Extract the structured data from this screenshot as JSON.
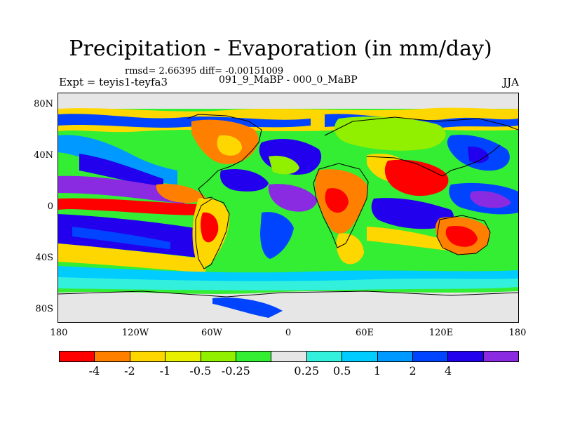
{
  "header": {
    "title": "Precipitation - Evaporation (in mm/day)",
    "stats": "rmsd= 2.66395  diff= -0.00151009",
    "experiment": "Expt = teyis1-teyfa3",
    "period": "091_9_MaBP - 000_0_MaBP",
    "season": "JJA"
  },
  "map": {
    "y_ticks": [
      "80N",
      "40N",
      "0",
      "40S",
      "80S"
    ],
    "x_ticks": [
      "180",
      "120W",
      "60W",
      "0",
      "60E",
      "120E",
      "180"
    ],
    "no_data_color": "#e6e6e6",
    "coastline_color": "#000000"
  },
  "colorbar": {
    "colors": [
      "#ff0000",
      "#ff8000",
      "#ffd700",
      "#e8f000",
      "#90f000",
      "#33ee33",
      "#e6e6e6",
      "#33f0dd",
      "#00ccff",
      "#0099ff",
      "#0044ff",
      "#2200ee",
      "#8a2be2"
    ],
    "labels": [
      "-4",
      "-2",
      "-1",
      "-0.5",
      "-0.25",
      "0.25",
      "0.5",
      "1",
      "2",
      "4"
    ]
  }
}
